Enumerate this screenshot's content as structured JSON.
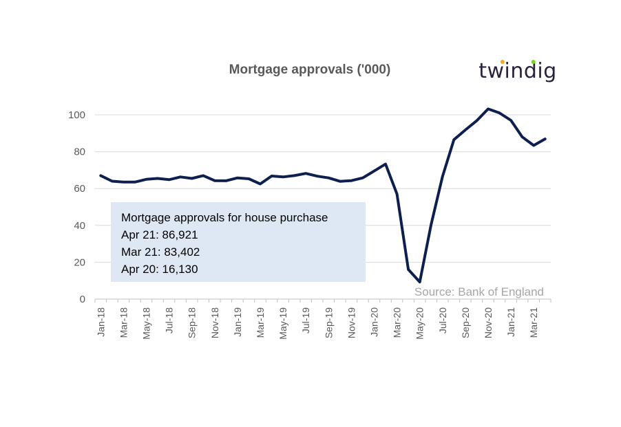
{
  "chart_data": {
    "type": "line",
    "title": "Mortgage approvals ('000)",
    "x": [
      "Jan-18",
      "Feb-18",
      "Mar-18",
      "Apr-18",
      "May-18",
      "Jun-18",
      "Jul-18",
      "Aug-18",
      "Sep-18",
      "Oct-18",
      "Nov-18",
      "Dec-18",
      "Jan-19",
      "Feb-19",
      "Mar-19",
      "Apr-19",
      "May-19",
      "Jun-19",
      "Jul-19",
      "Aug-19",
      "Sep-19",
      "Oct-19",
      "Nov-19",
      "Dec-19",
      "Jan-20",
      "Feb-20",
      "Mar-20",
      "Apr-20",
      "May-20",
      "Jun-20",
      "Jul-20",
      "Aug-20",
      "Sep-20",
      "Oct-20",
      "Nov-20",
      "Dec-20",
      "Jan-21",
      "Feb-21",
      "Mar-21",
      "Apr-21"
    ],
    "x_tick_labels": [
      "Jan-18",
      "Mar-18",
      "May-18",
      "Jul-18",
      "Sep-18",
      "Nov-18",
      "Jan-19",
      "Mar-19",
      "May-19",
      "Jul-19",
      "Sep-19",
      "Nov-19",
      "Jan-20",
      "Mar-20",
      "May-20",
      "Jul-20",
      "Sep-20",
      "Nov-20",
      "Jan-21",
      "Mar-21"
    ],
    "series": [
      {
        "values": [
          67,
          64,
          63.5,
          63.5,
          65,
          65.5,
          64.8,
          66.3,
          65.5,
          67,
          64.3,
          64.2,
          65.8,
          65.3,
          62.5,
          66.8,
          66.3,
          67,
          68.2,
          66.7,
          65.8,
          63.9,
          64.3,
          65.8,
          69.5,
          73.3,
          57,
          16.1,
          9.3,
          40.5,
          66.6,
          86.5,
          91.8,
          96.8,
          103.2,
          101,
          97,
          88,
          83.4,
          86.9
        ],
        "color": "#0d1f4f"
      }
    ],
    "ylim": [
      0,
      100
    ],
    "y_ticks": [
      "0",
      "20",
      "40",
      "60",
      "80",
      "100"
    ],
    "grid": true,
    "annotation": {
      "lines": [
        "Mortgage approvals for house purchase",
        "Apr 21:  86,921",
        "Mar 21: 83,402",
        "Apr 20:  16,130"
      ],
      "background": "#dde8f4"
    },
    "source": "Source: Bank of England"
  },
  "logo": {
    "text": "twindig",
    "dot_colors": [
      "#f5a623",
      "#7ed321"
    ]
  }
}
